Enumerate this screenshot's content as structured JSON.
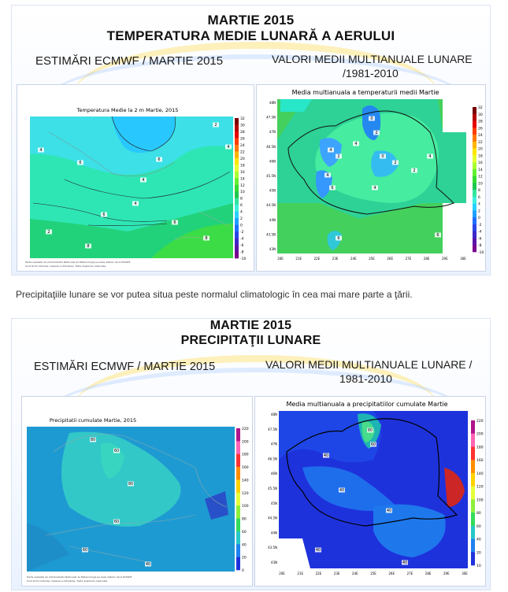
{
  "section_temperature": {
    "title_line1": "MARTIE 2015",
    "title_line2": "TEMPERATURA MEDIE LUNARĂ A AERULUI",
    "left_subtitle": "ESTIMĂRI ECMWF / MARTIE 2015",
    "right_subtitle_line1": "VALORI MEDII MULTIANUALE LUNARE",
    "right_subtitle_line2": "/1981-2010",
    "left_map": {
      "title": "Temperatura Medie la 2 m Martie, 2015",
      "scale_labels": [
        "32",
        "30",
        "28",
        "26",
        "24",
        "22",
        "20",
        "18",
        "16",
        "14",
        "12",
        "10",
        "8",
        "6",
        "4",
        "2",
        "0",
        "-2",
        "-4",
        "-6",
        "-8",
        "-10"
      ],
      "contour_labels": [
        "2",
        "4",
        "4",
        "6",
        "6",
        "4",
        "2",
        "4",
        "6",
        "6",
        "8",
        "8"
      ]
    },
    "right_map": {
      "title": "Media multianuala a temperaturii medii Martie",
      "scale_labels": [
        "32",
        "30",
        "28",
        "26",
        "24",
        "22",
        "20",
        "18",
        "16",
        "14",
        "12",
        "10",
        "8",
        "6",
        "4",
        "2",
        "0",
        "-2",
        "-4",
        "-6",
        "-8",
        "-10"
      ],
      "lat_labels": [
        "48N",
        "47.5N",
        "47N",
        "46.5N",
        "46N",
        "45.5N",
        "45N",
        "44.5N",
        "44N",
        "43.5N",
        "43N"
      ],
      "lon_labels": [
        "20E",
        "21E",
        "22E",
        "23E",
        "24E",
        "25E",
        "26E",
        "27E",
        "28E",
        "29E",
        "30E"
      ],
      "contour_labels": [
        "0",
        "2",
        "4",
        "2",
        "4",
        "0",
        "2",
        "4",
        "6",
        "4",
        "2",
        "4",
        "6",
        "6"
      ]
    }
  },
  "paragraph": "Precipitaţiile lunare se vor putea situa peste normalul climatologic în cea mai mare parte a ţării.",
  "section_precip": {
    "title_line1": "MARTIE 2015",
    "title_line2": "PRECIPITAŢII LUNARE",
    "left_subtitle": "ESTIMĂRI ECMWF / MARTIE 2015",
    "right_subtitle_line1": "VALORI MEDII MULTIANUALE LUNARE /",
    "right_subtitle_line2": "1981-2010",
    "left_map": {
      "title": "Precipitatii cumulate Martie, 2015",
      "scale_labels": [
        "220",
        "200",
        "180",
        "160",
        "140",
        "120",
        "100",
        "80",
        "60",
        "40",
        "20",
        "0"
      ],
      "contour_labels": [
        "80",
        "60",
        "80",
        "60",
        "60",
        "40"
      ]
    },
    "right_map": {
      "title": "Media multianuala a precipitatiilor cumulate Martie",
      "scale_labels": [
        "220",
        "200",
        "180",
        "160",
        "140",
        "120",
        "100",
        "80",
        "60",
        "40",
        "20",
        "10"
      ],
      "lat_labels": [
        "48N",
        "47.5N",
        "47N",
        "46.5N",
        "46N",
        "45.5N",
        "45N",
        "44.5N",
        "44N",
        "43.5N",
        "43N"
      ],
      "lon_labels": [
        "20E",
        "21E",
        "22E",
        "23E",
        "24E",
        "25E",
        "26E",
        "27E",
        "28E",
        "29E",
        "30E"
      ],
      "contour_labels": [
        "80",
        "60",
        "40",
        "40",
        "40",
        "40",
        "40"
      ]
    }
  },
  "colors": {
    "temp_scale": [
      "#7a0000",
      "#b40000",
      "#e60000",
      "#ff3c00",
      "#ff7800",
      "#ffb400",
      "#ffe600",
      "#e6ff32",
      "#aaff32",
      "#64f032",
      "#32dc32",
      "#1ec850",
      "#32e6a0",
      "#3cf0dc",
      "#28d2ff",
      "#1ea0ff",
      "#1e6eff",
      "#2846e6",
      "#3c28c8",
      "#5a14aa",
      "#78008c"
    ],
    "precip_scale": [
      "#b0148c",
      "#ff64b4",
      "#ff3232",
      "#ff8c00",
      "#ffd200",
      "#e6ff3c",
      "#8cf03c",
      "#32dc5a",
      "#28c8c8",
      "#1e82f0",
      "#1e32dc"
    ]
  }
}
